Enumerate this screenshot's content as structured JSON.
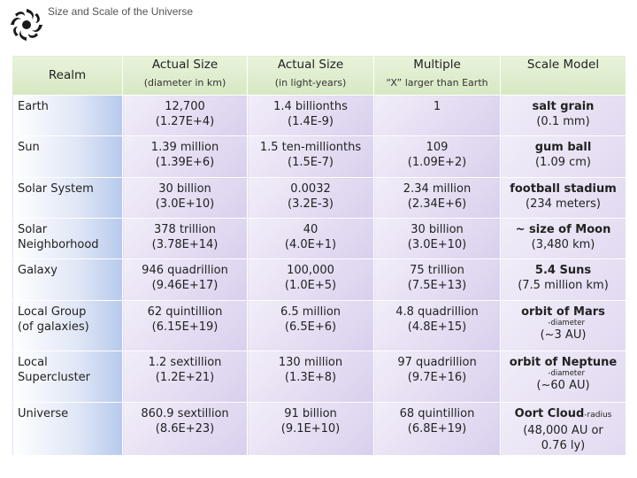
{
  "title": "Size and Scale of the Universe",
  "icon": "spiral-galaxy-icon",
  "headers": {
    "realm": "Realm",
    "actual_km_1": "Actual Size",
    "actual_km_2": "(diameter in km)",
    "actual_ly_1": "Actual Size",
    "actual_ly_2": "(in light-years)",
    "multiple_1": "Multiple",
    "multiple_2": "“X” larger than Earth",
    "model_1": "Scale Model"
  },
  "rows": [
    {
      "realm_1": "Earth",
      "realm_2": "",
      "km_1": "12,700",
      "km_2": "(1.27E+4)",
      "ly_1": "1.4 billionths",
      "ly_2": "(1.4E-9)",
      "mult_1": "1",
      "mult_2": "",
      "model_1": "salt grain",
      "model_2": "(0.1 mm)"
    },
    {
      "realm_1": "Sun",
      "realm_2": "",
      "km_1": "1.39 million",
      "km_2": "(1.39E+6)",
      "ly_1": "1.5 ten-millionths",
      "ly_2": "(1.5E-7)",
      "mult_1": "109",
      "mult_2": "(1.09E+2)",
      "model_1": "gum ball",
      "model_2": "(1.09 cm)"
    },
    {
      "realm_1": "Solar System",
      "realm_2": "",
      "km_1": "30 billion",
      "km_2": "(3.0E+10)",
      "ly_1": "0.0032",
      "ly_2": "(3.2E-3)",
      "mult_1": "2.34 million",
      "mult_2": "(2.34E+6)",
      "model_1": "football stadium",
      "model_2": "(234 meters)"
    },
    {
      "realm_1": "Solar",
      "realm_2": "Neighborhood",
      "km_1": "378 trillion",
      "km_2": "(3.78E+14)",
      "ly_1": "40",
      "ly_2": "(4.0E+1)",
      "mult_1": "30 billion",
      "mult_2": "(3.0E+10)",
      "model_1": "~ size of Moon",
      "model_2": "(3,480 km)"
    },
    {
      "realm_1": "Galaxy",
      "realm_2": "",
      "km_1": "946 quadrillion",
      "km_2": "(9.46E+17)",
      "ly_1": "100,000",
      "ly_2": "(1.0E+5)",
      "mult_1": "75 trillion",
      "mult_2": "(7.5E+13)",
      "model_1": "5.4 Suns",
      "model_2": "(7.5 million km)"
    },
    {
      "realm_1": "Local Group",
      "realm_2": "(of galaxies)",
      "km_1": "62 quintillion",
      "km_2": "(6.15E+19)",
      "ly_1": "6.5 million",
      "ly_2": "(6.5E+6)",
      "mult_1": "4.8 quadrillion",
      "mult_2": "(4.8E+15)",
      "model_1": "orbit of Mars",
      "model_sub": "-diameter",
      "model_2": "(~3 AU)"
    },
    {
      "realm_1": "Local",
      "realm_2": "Supercluster",
      "km_1": "1.2 sextillion",
      "km_2": "(1.2E+21)",
      "ly_1": "130 million",
      "ly_2": "(1.3E+8)",
      "mult_1": "97 quadrillion",
      "mult_2": "(9.7E+16)",
      "model_1": "orbit of Neptune",
      "model_sub": "-diameter",
      "model_2": "(~60 AU)"
    },
    {
      "realm_1": "Universe",
      "realm_2": "",
      "km_1": "860.9 sextillion",
      "km_2": "(8.6E+23)",
      "ly_1": "91 billion",
      "ly_2": "(9.1E+10)",
      "mult_1": "68 quintillion",
      "mult_2": "(6.8E+19)",
      "model_1": "Oort Cloud",
      "model_inline": "-radius",
      "model_2": "(48,000 AU or",
      "model_3": "0.76 ly)"
    }
  ]
}
